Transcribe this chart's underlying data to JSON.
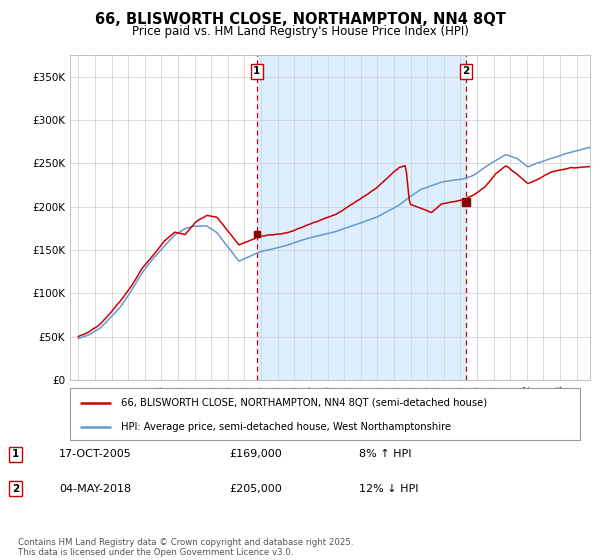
{
  "title": "66, BLISWORTH CLOSE, NORTHAMPTON, NN4 8QT",
  "subtitle": "Price paid vs. HM Land Registry's House Price Index (HPI)",
  "hpi_label": "HPI: Average price, semi-detached house, West Northamptonshire",
  "property_label": "66, BLISWORTH CLOSE, NORTHAMPTON, NN4 8QT (semi-detached house)",
  "property_color": "#cc0000",
  "hpi_color": "#6699cc",
  "shade_color": "#ddeeff",
  "vline_color": "#cc0000",
  "sale1_date": "17-OCT-2005",
  "sale1_price": "£169,000",
  "sale1_pct": "8% ↑ HPI",
  "sale2_date": "04-MAY-2018",
  "sale2_price": "£205,000",
  "sale2_pct": "12% ↓ HPI",
  "footnote": "Contains HM Land Registry data © Crown copyright and database right 2025.\nThis data is licensed under the Open Government Licence v3.0.",
  "ylim_min": 0,
  "ylim_max": 375000,
  "yticks": [
    0,
    50000,
    100000,
    150000,
    200000,
    250000,
    300000,
    350000
  ],
  "ytick_labels": [
    "£0",
    "£50K",
    "£100K",
    "£150K",
    "£200K",
    "£250K",
    "£300K",
    "£350K"
  ],
  "start_year": 1995,
  "end_year": 2025
}
